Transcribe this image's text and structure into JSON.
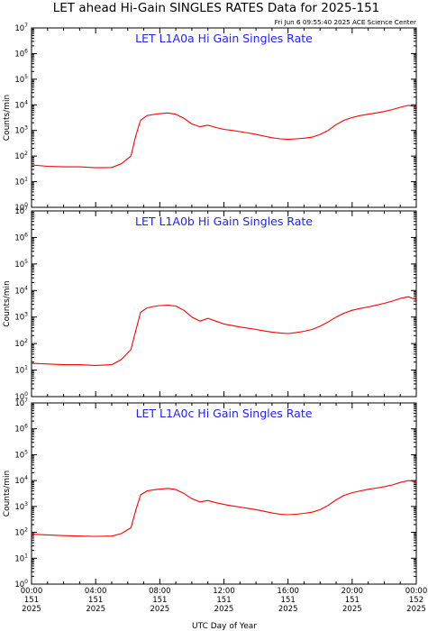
{
  "title": "LET ahead Hi-Gain SINGLES RATES Data for 2025-151",
  "timestamp": "Fri Jun  6 09:55:40 2025 ACE Science Center",
  "xlabel": "UTC Day of Year",
  "chart_data": [
    {
      "type": "line",
      "title": "LET L1A0a Hi Gain Singles Rate",
      "ylabel": "Counts/min",
      "yscale": "log",
      "ylim": [
        1,
        10000000
      ],
      "xlim": [
        0,
        24
      ],
      "x_units": "hours UTC, day 151 of 2025",
      "x_ticks": [
        {
          "hour": 0,
          "lines": [
            "00:00",
            "151",
            "2025"
          ]
        },
        {
          "hour": 4,
          "lines": [
            "04:00",
            "151",
            "2025"
          ]
        },
        {
          "hour": 8,
          "lines": [
            "08:00",
            "151",
            "2025"
          ]
        },
        {
          "hour": 12,
          "lines": [
            "12:00",
            "151",
            "2025"
          ]
        },
        {
          "hour": 16,
          "lines": [
            "16:00",
            "151",
            "2025"
          ]
        },
        {
          "hour": 20,
          "lines": [
            "20:00",
            "151",
            "2025"
          ]
        },
        {
          "hour": 24,
          "lines": [
            "00:00",
            "152",
            "2025"
          ]
        }
      ],
      "x": [
        0,
        1,
        2,
        3,
        4,
        5,
        5.6,
        6.2,
        6.5,
        6.8,
        7.2,
        7.6,
        8,
        8.5,
        9,
        9.5,
        10,
        10.5,
        11,
        11.5,
        12,
        12.5,
        13,
        13.5,
        14,
        14.5,
        15,
        15.5,
        16,
        16.5,
        17,
        17.5,
        18,
        18.5,
        19,
        19.5,
        20,
        20.5,
        21,
        21.5,
        22,
        22.5,
        23,
        23.5,
        24
      ],
      "y": [
        45,
        40,
        38,
        38,
        35,
        36,
        50,
        100,
        600,
        2500,
        3800,
        4200,
        4500,
        4800,
        4300,
        3000,
        1800,
        1400,
        1600,
        1300,
        1100,
        1000,
        900,
        800,
        700,
        600,
        520,
        470,
        450,
        470,
        500,
        550,
        700,
        1000,
        1700,
        2500,
        3200,
        3800,
        4300,
        4800,
        5500,
        6500,
        8000,
        9500,
        8500
      ]
    },
    {
      "type": "line",
      "title": "LET L1A0b Hi Gain Singles Rate",
      "ylabel": "Counts/min",
      "yscale": "log",
      "ylim": [
        1,
        10000000
      ],
      "xlim": [
        0,
        24
      ],
      "x_units": "hours UTC, day 151 of 2025",
      "x_ticks": [
        {
          "hour": 0,
          "lines": [
            "00:00",
            "151",
            "2025"
          ]
        },
        {
          "hour": 4,
          "lines": [
            "04:00",
            "151",
            "2025"
          ]
        },
        {
          "hour": 8,
          "lines": [
            "08:00",
            "151",
            "2025"
          ]
        },
        {
          "hour": 12,
          "lines": [
            "12:00",
            "151",
            "2025"
          ]
        },
        {
          "hour": 16,
          "lines": [
            "16:00",
            "151",
            "2025"
          ]
        },
        {
          "hour": 20,
          "lines": [
            "20:00",
            "151",
            "2025"
          ]
        },
        {
          "hour": 24,
          "lines": [
            "00:00",
            "152",
            "2025"
          ]
        }
      ],
      "x": [
        0,
        1,
        2,
        3,
        4,
        5,
        5.6,
        6.2,
        6.5,
        6.8,
        7.2,
        7.6,
        8,
        8.5,
        9,
        9.5,
        10,
        10.5,
        11,
        11.5,
        12,
        12.5,
        13,
        13.5,
        14,
        14.5,
        15,
        15.5,
        16,
        16.5,
        17,
        17.5,
        18,
        18.5,
        19,
        19.5,
        20,
        20.5,
        21,
        21.5,
        22,
        22.5,
        23,
        23.5,
        24
      ],
      "y": [
        18,
        17,
        16,
        16,
        15,
        16,
        25,
        60,
        300,
        1500,
        2200,
        2500,
        2700,
        2800,
        2600,
        1800,
        1000,
        700,
        900,
        700,
        550,
        480,
        420,
        380,
        340,
        300,
        270,
        250,
        240,
        260,
        290,
        340,
        450,
        650,
        1000,
        1400,
        1800,
        2100,
        2400,
        2800,
        3300,
        4000,
        5000,
        5800,
        4500
      ]
    },
    {
      "type": "line",
      "title": "LET L1A0c Hi Gain Singles Rate",
      "ylabel": "Counts/min",
      "yscale": "log",
      "ylim": [
        1,
        10000000
      ],
      "xlim": [
        0,
        24
      ],
      "x_units": "hours UTC, day 151 of 2025",
      "x_ticks": [
        {
          "hour": 0,
          "lines": [
            "00:00",
            "151",
            "2025"
          ]
        },
        {
          "hour": 4,
          "lines": [
            "04:00",
            "151",
            "2025"
          ]
        },
        {
          "hour": 8,
          "lines": [
            "08:00",
            "151",
            "2025"
          ]
        },
        {
          "hour": 12,
          "lines": [
            "12:00",
            "151",
            "2025"
          ]
        },
        {
          "hour": 16,
          "lines": [
            "16:00",
            "151",
            "2025"
          ]
        },
        {
          "hour": 20,
          "lines": [
            "20:00",
            "151",
            "2025"
          ]
        },
        {
          "hour": 24,
          "lines": [
            "00:00",
            "152",
            "2025"
          ]
        }
      ],
      "x": [
        0,
        1,
        2,
        3,
        4,
        5,
        5.6,
        6.2,
        6.5,
        6.8,
        7.2,
        7.6,
        8,
        8.5,
        9,
        9.5,
        10,
        10.5,
        11,
        11.5,
        12,
        12.5,
        13,
        13.5,
        14,
        14.5,
        15,
        15.5,
        16,
        16.5,
        17,
        17.5,
        18,
        18.5,
        19,
        19.5,
        20,
        20.5,
        21,
        21.5,
        22,
        22.5,
        23,
        23.5,
        24
      ],
      "y": [
        85,
        80,
        75,
        72,
        70,
        72,
        90,
        150,
        700,
        2800,
        4000,
        4400,
        4700,
        5000,
        4500,
        3200,
        2000,
        1500,
        1700,
        1400,
        1200,
        1050,
        950,
        850,
        750,
        650,
        560,
        500,
        480,
        500,
        540,
        600,
        750,
        1100,
        1800,
        2700,
        3400,
        4000,
        4600,
        5100,
        5800,
        6800,
        8500,
        10000,
        9000
      ]
    }
  ]
}
